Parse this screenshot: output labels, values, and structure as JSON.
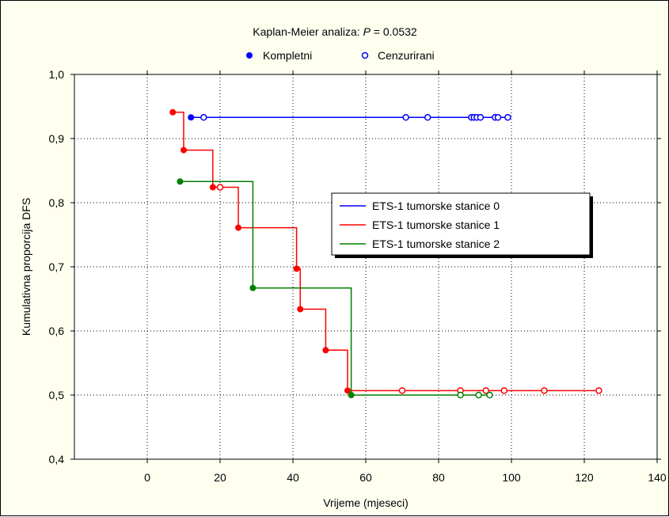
{
  "chart_data": {
    "type": "line",
    "title_prefix": "Kaplan-Meier analiza: ",
    "title_p": "P",
    "title_suffix": " = 0.0532",
    "marker_legend": {
      "complete_label": "Kompletni",
      "censored_label": "Cenzurirani"
    },
    "xlabel": "Vrijeme (mjeseci)",
    "ylabel": "Kumulativna proporcija DFS",
    "xlim": [
      -20,
      140
    ],
    "ylim": [
      0.4,
      1.0
    ],
    "x_ticks": [
      0,
      20,
      40,
      60,
      80,
      100,
      120,
      140
    ],
    "x_tick_labels": [
      "0",
      "20",
      "40",
      "60",
      "80",
      "100",
      "120",
      "140"
    ],
    "y_ticks": [
      0.4,
      0.5,
      0.6,
      0.7,
      0.8,
      0.9,
      1.0
    ],
    "y_tick_labels": [
      "0,4",
      "0,5",
      "0,6",
      "0,7",
      "0,8",
      "0,9",
      "1,0"
    ],
    "legend_position": "right",
    "series": [
      {
        "name": "ETS-1 tumorske stanice 0",
        "color": "#0000ff",
        "steps": [
          [
            12,
            0.933
          ],
          [
            99,
            0.933
          ]
        ],
        "events": [
          [
            12,
            0.933
          ]
        ],
        "censored": [
          [
            15.5,
            0.933
          ],
          [
            71,
            0.933
          ],
          [
            77,
            0.933
          ],
          [
            89,
            0.933
          ],
          [
            89.7,
            0.933
          ],
          [
            90.5,
            0.933
          ],
          [
            91.5,
            0.933
          ],
          [
            95.5,
            0.933
          ],
          [
            96.3,
            0.933
          ],
          [
            99,
            0.933
          ]
        ]
      },
      {
        "name": "ETS-1 tumorske stanice 1",
        "color": "#ff0000",
        "steps": [
          [
            7,
            0.941
          ],
          [
            10,
            0.882
          ],
          [
            18,
            0.824
          ],
          [
            25,
            0.761
          ],
          [
            41,
            0.697
          ],
          [
            42,
            0.634
          ],
          [
            49,
            0.57
          ],
          [
            55,
            0.507
          ],
          [
            124,
            0.507
          ]
        ],
        "events": [
          [
            7,
            0.941
          ],
          [
            10,
            0.882
          ],
          [
            18,
            0.824
          ],
          [
            25,
            0.761
          ],
          [
            41,
            0.697
          ],
          [
            42,
            0.634
          ],
          [
            49,
            0.57
          ],
          [
            55,
            0.507
          ]
        ],
        "censored": [
          [
            20,
            0.824
          ],
          [
            70,
            0.507
          ],
          [
            86,
            0.507
          ],
          [
            93,
            0.507
          ],
          [
            98,
            0.507
          ],
          [
            109,
            0.507
          ],
          [
            124,
            0.507
          ]
        ]
      },
      {
        "name": "ETS-1 tumorske stanice 2",
        "color": "#008000",
        "steps": [
          [
            9,
            0.833
          ],
          [
            29,
            0.667
          ],
          [
            56,
            0.5
          ],
          [
            94,
            0.5
          ]
        ],
        "events": [
          [
            9,
            0.833
          ],
          [
            29,
            0.667
          ],
          [
            56,
            0.5
          ]
        ],
        "censored": [
          [
            86,
            0.5
          ],
          [
            91,
            0.5
          ],
          [
            94,
            0.5
          ]
        ]
      }
    ]
  }
}
